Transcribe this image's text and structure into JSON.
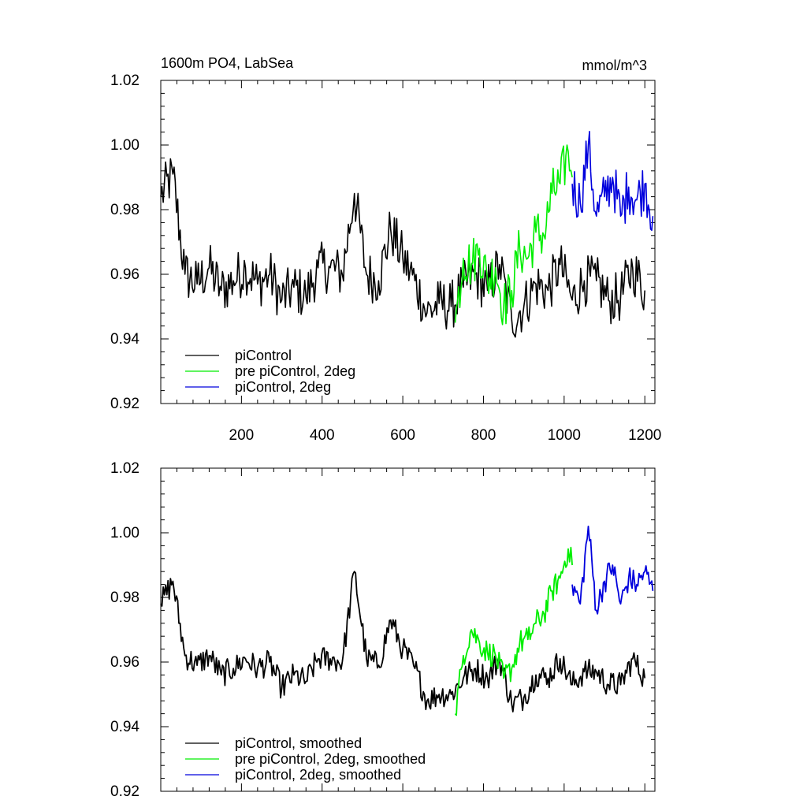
{
  "chart_data": [
    {
      "type": "line",
      "title": "1600m PO4, LabSea",
      "units": "mmol/m^3",
      "xlabel": "",
      "ylabel": "",
      "xlim": [
        0,
        1225
      ],
      "ylim": [
        0.92,
        1.02
      ],
      "x_ticks": [
        200,
        400,
        600,
        800,
        1000,
        1200
      ],
      "y_ticks": [
        "0.92",
        "0.94",
        "0.96",
        "0.98",
        "1.00",
        "1.02"
      ],
      "legend_position": "bottom-left",
      "series": [
        {
          "name": "piControl",
          "color": "#000000",
          "x": [
            0,
            30,
            60,
            90,
            120,
            150,
            180,
            210,
            240,
            270,
            300,
            330,
            360,
            390,
            420,
            450,
            480,
            510,
            540,
            570,
            600,
            630,
            660,
            690,
            720,
            750,
            780,
            810,
            840,
            870,
            900,
            930,
            960,
            990,
            1020,
            1050,
            1080,
            1110,
            1140,
            1170,
            1200
          ],
          "values": [
            0.984,
            0.991,
            0.96,
            0.957,
            0.962,
            0.955,
            0.958,
            0.962,
            0.957,
            0.96,
            0.952,
            0.956,
            0.953,
            0.962,
            0.962,
            0.96,
            0.985,
            0.96,
            0.958,
            0.974,
            0.965,
            0.958,
            0.948,
            0.951,
            0.95,
            0.956,
            0.96,
            0.955,
            0.963,
            0.946,
            0.95,
            0.957,
            0.955,
            0.963,
            0.952,
            0.958,
            0.958,
            0.952,
            0.953,
            0.962,
            0.955
          ]
        },
        {
          "name": "pre piControl, 2deg",
          "color": "#00ee00",
          "x": [
            730,
            750,
            770,
            790,
            810,
            830,
            850,
            870,
            890,
            910,
            930,
            950,
            970,
            990,
            1010,
            1020
          ],
          "values": [
            0.945,
            0.965,
            0.963,
            0.968,
            0.958,
            0.962,
            0.95,
            0.955,
            0.968,
            0.965,
            0.973,
            0.972,
            0.985,
            0.988,
            0.998,
            0.99
          ]
        },
        {
          "name": "piControl, 2deg",
          "color": "#0000dd",
          "x": [
            1020,
            1040,
            1060,
            1080,
            1100,
            1120,
            1140,
            1160,
            1180,
            1200,
            1220
          ],
          "values": [
            0.988,
            0.982,
            1.0,
            0.978,
            0.984,
            0.99,
            0.978,
            0.987,
            0.983,
            0.988,
            0.978
          ]
        }
      ]
    },
    {
      "type": "line",
      "title": "",
      "xlabel": "",
      "ylabel": "",
      "xlim": [
        0,
        1225
      ],
      "ylim": [
        0.92,
        1.02
      ],
      "y_ticks": [
        "0.92",
        "0.94",
        "0.96",
        "0.98",
        "1.00",
        "1.02"
      ],
      "legend_position": "bottom-left",
      "series": [
        {
          "name": "piControl, smoothed",
          "color": "#000000",
          "x": [
            0,
            30,
            60,
            90,
            120,
            150,
            180,
            210,
            240,
            270,
            300,
            330,
            360,
            390,
            420,
            450,
            480,
            510,
            540,
            570,
            600,
            630,
            660,
            690,
            720,
            750,
            780,
            810,
            840,
            870,
            900,
            930,
            960,
            990,
            1020,
            1050,
            1080,
            1110,
            1140,
            1170,
            1200
          ],
          "values": [
            0.978,
            0.985,
            0.962,
            0.959,
            0.962,
            0.956,
            0.958,
            0.961,
            0.958,
            0.96,
            0.952,
            0.956,
            0.954,
            0.961,
            0.961,
            0.96,
            0.988,
            0.961,
            0.959,
            0.973,
            0.964,
            0.958,
            0.948,
            0.95,
            0.95,
            0.955,
            0.958,
            0.955,
            0.961,
            0.947,
            0.949,
            0.956,
            0.955,
            0.961,
            0.953,
            0.957,
            0.957,
            0.953,
            0.953,
            0.961,
            0.955
          ]
        },
        {
          "name": "pre piControl, 2deg, smoothed",
          "color": "#00ee00",
          "x": [
            730,
            750,
            770,
            790,
            810,
            830,
            850,
            870,
            890,
            910,
            930,
            950,
            970,
            990,
            1010,
            1020
          ],
          "values": [
            0.944,
            0.962,
            0.97,
            0.966,
            0.963,
            0.962,
            0.955,
            0.958,
            0.966,
            0.967,
            0.972,
            0.975,
            0.982,
            0.986,
            0.995,
            0.99
          ]
        },
        {
          "name": "piControl, 2deg, smoothed",
          "color": "#0000dd",
          "x": [
            1020,
            1040,
            1060,
            1080,
            1100,
            1120,
            1140,
            1160,
            1180,
            1200,
            1220
          ],
          "values": [
            0.984,
            0.978,
            1.002,
            0.976,
            0.985,
            0.99,
            0.978,
            0.986,
            0.984,
            0.988,
            0.982
          ]
        }
      ]
    }
  ]
}
